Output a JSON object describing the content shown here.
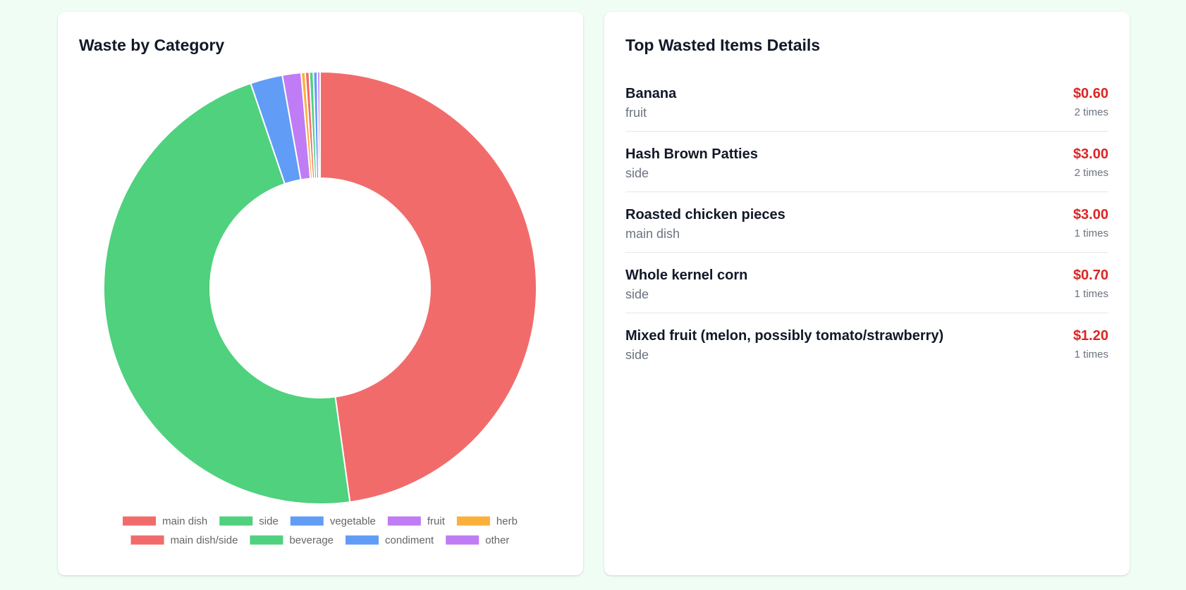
{
  "chart_data": {
    "type": "pie",
    "subtype": "doughnut",
    "title": "Waste by Category",
    "categories": [
      "main dish",
      "side",
      "vegetable",
      "fruit",
      "herb",
      "main dish/side",
      "beverage",
      "condiment",
      "other"
    ],
    "values": [
      47.8,
      47.0,
      2.4,
      1.4,
      0.3,
      0.3,
      0.3,
      0.3,
      0.2
    ],
    "colors": [
      "#f26b6b",
      "#4fd17e",
      "#619cf7",
      "#bf7cf5",
      "#fbb03b",
      "#f26b6b",
      "#4fd17e",
      "#619cf7",
      "#bf7cf5"
    ],
    "legend_placement": "bottom-center",
    "legend_rows": [
      [
        0,
        1,
        2,
        3,
        4
      ],
      [
        5,
        6,
        7,
        8
      ]
    ]
  },
  "details": {
    "title": "Top Wasted Items Details",
    "items": [
      {
        "name": "Banana",
        "category": "fruit",
        "cost": "$0.60",
        "count": "2 times"
      },
      {
        "name": "Hash Brown Patties",
        "category": "side",
        "cost": "$3.00",
        "count": "2 times"
      },
      {
        "name": "Roasted chicken pieces",
        "category": "main dish",
        "cost": "$3.00",
        "count": "1 times"
      },
      {
        "name": "Whole kernel corn",
        "category": "side",
        "cost": "$0.70",
        "count": "1 times"
      },
      {
        "name": "Mixed fruit (melon, possibly tomato/strawberry)",
        "category": "side",
        "cost": "$1.20",
        "count": "1 times"
      }
    ]
  }
}
